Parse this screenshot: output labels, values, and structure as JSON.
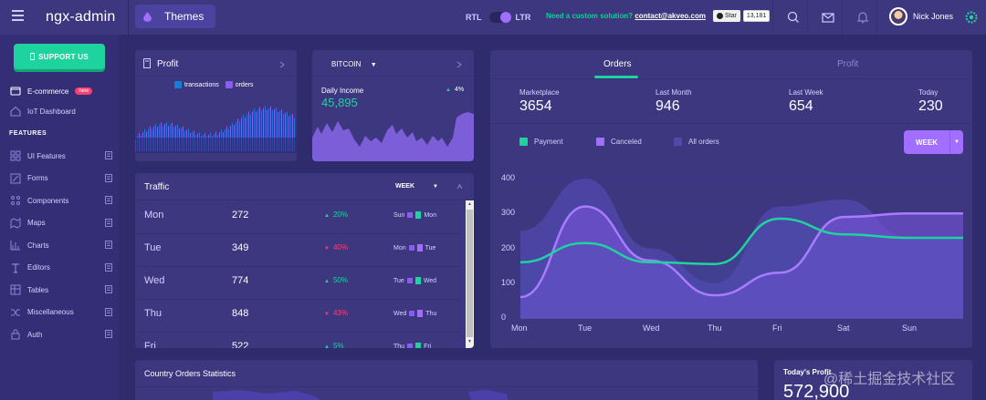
{
  "header": {
    "logo": "ngx-admin",
    "themes_label": "Themes",
    "rtl": "RTL",
    "ltr": "LTR",
    "custom_text": "Need a custom solution?",
    "custom_email": "contact@akveo.com",
    "github_star": "Star",
    "github_count": "13,181",
    "user_name": "Nick Jones"
  },
  "sidebar": {
    "support_label": "SUPPORT US",
    "ecommerce": "E-commerce",
    "ecommerce_badge": "new",
    "iot": "IoT Dashboard",
    "features_heading": "FEATURES",
    "items": [
      {
        "label": "UI Features",
        "icon": "layout-icon"
      },
      {
        "label": "Forms",
        "icon": "edit-icon"
      },
      {
        "label": "Components",
        "icon": "keypad-icon"
      },
      {
        "label": "Maps",
        "icon": "map-icon"
      },
      {
        "label": "Charts",
        "icon": "pie-chart-icon"
      },
      {
        "label": "Editors",
        "icon": "text-icon"
      },
      {
        "label": "Tables",
        "icon": "grid-icon"
      },
      {
        "label": "Miscellaneous",
        "icon": "shuffle-icon"
      },
      {
        "label": "Auth",
        "icon": "lock-icon"
      }
    ]
  },
  "profit_card": {
    "title": "Profit",
    "legend": [
      "transactions",
      "orders"
    ]
  },
  "bitcoin_card": {
    "currency": "BITCOIN",
    "label": "Daily Income",
    "value": "45,895",
    "change": "4%"
  },
  "traffic_card": {
    "title": "Traffic",
    "period": "WEEK",
    "rows": [
      {
        "day": "Mon",
        "value": "272",
        "pct": "20%",
        "dir": "up",
        "cmp_from": "Sun",
        "cmp_to": "Mon"
      },
      {
        "day": "Tue",
        "value": "349",
        "pct": "40%",
        "dir": "down",
        "cmp_from": "Mon",
        "cmp_to": "Tue"
      },
      {
        "day": "Wed",
        "value": "774",
        "pct": "50%",
        "dir": "up",
        "cmp_from": "Tue",
        "cmp_to": "Wed"
      },
      {
        "day": "Thu",
        "value": "848",
        "pct": "43%",
        "dir": "down",
        "cmp_from": "Wed",
        "cmp_to": "Thu"
      },
      {
        "day": "Fri",
        "value": "522",
        "pct": "5%",
        "dir": "up",
        "cmp_from": "Thu",
        "cmp_to": "Fri"
      }
    ]
  },
  "orders_card": {
    "tabs": [
      "Orders",
      "Profit"
    ],
    "active_tab": "Orders",
    "stats": [
      {
        "label": "Marketplace",
        "value": "3654"
      },
      {
        "label": "Last Month",
        "value": "946"
      },
      {
        "label": "Last Week",
        "value": "654"
      },
      {
        "label": "Today",
        "value": "230"
      }
    ],
    "legend": [
      "Payment",
      "Canceled",
      "All orders"
    ],
    "period_button": "WEEK",
    "colors": {
      "payment": "#1fd39e",
      "canceled": "#a16eff",
      "all_orders": "#504aa8"
    }
  },
  "chart_data": {
    "type": "area",
    "x": [
      "Mon",
      "Tue",
      "Wed",
      "Thu",
      "Fri",
      "Sat",
      "Sun"
    ],
    "ylim": [
      0,
      400
    ],
    "yticks": [
      0,
      100,
      200,
      300,
      400
    ],
    "series": [
      {
        "name": "All orders",
        "values": [
          250,
          400,
          200,
          100,
          320,
          340,
          230
        ]
      },
      {
        "name": "Canceled",
        "values": [
          60,
          320,
          165,
          65,
          130,
          290,
          300
        ]
      },
      {
        "name": "Payment",
        "values": [
          160,
          215,
          160,
          155,
          285,
          240,
          230
        ]
      }
    ]
  },
  "bottom": {
    "country_title": "Country Orders Statistics",
    "today_profit_title": "Today's Profit",
    "today_profit_value": "572,900"
  },
  "watermark": "@稀土掘金技术社区"
}
